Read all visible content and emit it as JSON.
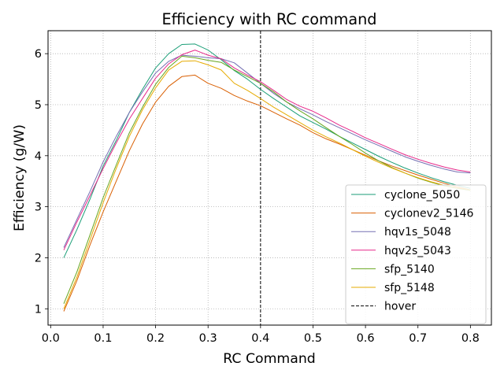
{
  "chart_data": {
    "type": "line",
    "title": "Efficiency with RC command",
    "xlabel": "RC Command",
    "ylabel": "Efficiency (g/W)",
    "xlim": [
      -0.005,
      0.84
    ],
    "ylim": [
      0.68,
      6.45
    ],
    "xticks": [
      0.0,
      0.1,
      0.2,
      0.3,
      0.4,
      0.5,
      0.6,
      0.7,
      0.8
    ],
    "xtick_labels": [
      "0.0",
      "0.1",
      "0.2",
      "0.3",
      "0.4",
      "0.5",
      "0.6",
      "0.7",
      "0.8"
    ],
    "yticks": [
      1,
      2,
      3,
      4,
      5,
      6
    ],
    "ytick_labels": [
      "1",
      "2",
      "3",
      "4",
      "5",
      "6"
    ],
    "grid": true,
    "legend_position": "lower right",
    "series": [
      {
        "name": "cyclone_5050",
        "color": "#1b9e77",
        "x": [
          0.025,
          0.05,
          0.075,
          0.1,
          0.125,
          0.15,
          0.175,
          0.2,
          0.225,
          0.25,
          0.275,
          0.3,
          0.325,
          0.35,
          0.375,
          0.4,
          0.425,
          0.45,
          0.475,
          0.5,
          0.525,
          0.55,
          0.575,
          0.6,
          0.625,
          0.65,
          0.675,
          0.7,
          0.725,
          0.75,
          0.775,
          0.8
        ],
        "y": [
          2.0,
          2.55,
          3.15,
          3.8,
          4.3,
          4.85,
          5.3,
          5.72,
          6.0,
          6.18,
          6.19,
          6.07,
          5.88,
          5.67,
          5.5,
          5.3,
          5.12,
          4.95,
          4.78,
          4.65,
          4.52,
          4.38,
          4.25,
          4.12,
          3.99,
          3.87,
          3.76,
          3.66,
          3.57,
          3.49,
          3.42,
          3.36
        ]
      },
      {
        "name": "cyclonev2_5146",
        "color": "#d95f02",
        "x": [
          0.025,
          0.05,
          0.075,
          0.1,
          0.125,
          0.15,
          0.175,
          0.2,
          0.225,
          0.25,
          0.275,
          0.3,
          0.325,
          0.35,
          0.375,
          0.4,
          0.425,
          0.45,
          0.475,
          0.5,
          0.525,
          0.55,
          0.575,
          0.6,
          0.625,
          0.65,
          0.675,
          0.7,
          0.725,
          0.75,
          0.775,
          0.8
        ],
        "y": [
          0.95,
          1.55,
          2.25,
          2.9,
          3.5,
          4.1,
          4.62,
          5.05,
          5.36,
          5.55,
          5.58,
          5.42,
          5.32,
          5.18,
          5.07,
          4.98,
          4.85,
          4.72,
          4.6,
          4.45,
          4.33,
          4.23,
          4.12,
          4.01,
          3.9,
          3.8,
          3.71,
          3.62,
          3.54,
          3.46,
          3.39,
          3.33
        ]
      },
      {
        "name": "hqv1s_5048",
        "color": "#7570b3",
        "x": [
          0.025,
          0.05,
          0.075,
          0.1,
          0.125,
          0.15,
          0.175,
          0.2,
          0.225,
          0.25,
          0.275,
          0.3,
          0.325,
          0.35,
          0.375,
          0.4,
          0.425,
          0.45,
          0.475,
          0.5,
          0.525,
          0.55,
          0.575,
          0.6,
          0.625,
          0.65,
          0.675,
          0.7,
          0.725,
          0.75,
          0.775,
          0.8
        ],
        "y": [
          2.2,
          2.75,
          3.3,
          3.88,
          4.38,
          4.85,
          5.25,
          5.62,
          5.85,
          5.97,
          5.95,
          5.92,
          5.9,
          5.82,
          5.62,
          5.42,
          5.22,
          5.05,
          4.92,
          4.8,
          4.67,
          4.55,
          4.43,
          4.31,
          4.2,
          4.09,
          3.98,
          3.89,
          3.81,
          3.74,
          3.68,
          3.66
        ]
      },
      {
        "name": "hqv2s_5043",
        "color": "#e7298a",
        "x": [
          0.025,
          0.05,
          0.075,
          0.1,
          0.125,
          0.15,
          0.175,
          0.2,
          0.225,
          0.25,
          0.275,
          0.3,
          0.325,
          0.35,
          0.375,
          0.4,
          0.425,
          0.45,
          0.475,
          0.5,
          0.525,
          0.55,
          0.575,
          0.6,
          0.625,
          0.65,
          0.675,
          0.7,
          0.725,
          0.75,
          0.775,
          0.8
        ],
        "y": [
          2.15,
          2.7,
          3.22,
          3.75,
          4.25,
          4.72,
          5.12,
          5.52,
          5.8,
          5.98,
          6.07,
          5.97,
          5.9,
          5.72,
          5.58,
          5.45,
          5.28,
          5.1,
          4.97,
          4.87,
          4.74,
          4.6,
          4.48,
          4.35,
          4.24,
          4.13,
          4.02,
          3.93,
          3.85,
          3.78,
          3.72,
          3.68
        ]
      },
      {
        "name": "sfp_5140",
        "color": "#66a61e",
        "x": [
          0.025,
          0.05,
          0.075,
          0.1,
          0.125,
          0.15,
          0.175,
          0.2,
          0.225,
          0.25,
          0.275,
          0.3,
          0.325,
          0.35,
          0.375,
          0.4,
          0.425,
          0.45,
          0.475,
          0.5,
          0.525,
          0.55,
          0.575,
          0.6,
          0.625,
          0.65,
          0.675,
          0.7,
          0.725,
          0.75,
          0.775,
          0.8
        ],
        "y": [
          1.1,
          1.72,
          2.45,
          3.18,
          3.82,
          4.45,
          4.95,
          5.4,
          5.73,
          5.95,
          5.92,
          5.87,
          5.83,
          5.68,
          5.55,
          5.42,
          5.25,
          5.05,
          4.88,
          4.72,
          4.55,
          4.38,
          4.22,
          4.05,
          3.9,
          3.77,
          3.66,
          3.56,
          3.48,
          3.41,
          3.36,
          3.32
        ]
      },
      {
        "name": "sfp_5148",
        "color": "#e6ab02",
        "x": [
          0.025,
          0.05,
          0.075,
          0.1,
          0.125,
          0.15,
          0.175,
          0.2,
          0.225,
          0.25,
          0.275,
          0.3,
          0.325,
          0.35,
          0.375,
          0.4,
          0.425,
          0.45,
          0.475,
          0.5,
          0.525,
          0.55,
          0.575,
          0.6,
          0.625,
          0.65,
          0.675,
          0.7,
          0.725,
          0.75,
          0.775,
          0.8
        ],
        "y": [
          1.0,
          1.62,
          2.35,
          3.08,
          3.75,
          4.38,
          4.9,
          5.33,
          5.68,
          5.85,
          5.86,
          5.78,
          5.68,
          5.42,
          5.28,
          5.12,
          4.95,
          4.8,
          4.65,
          4.5,
          4.37,
          4.25,
          4.12,
          3.99,
          3.87,
          3.76,
          3.66,
          3.57,
          3.49,
          3.42,
          3.37,
          3.33
        ]
      }
    ],
    "reference_line": {
      "name": "hover",
      "orientation": "vertical",
      "x": 0.4,
      "color": "#000000",
      "style": "dashed"
    }
  }
}
